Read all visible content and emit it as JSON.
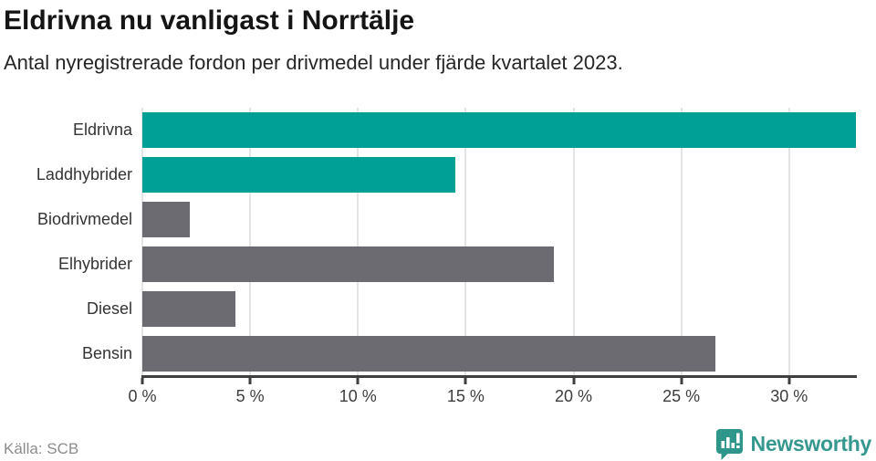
{
  "header": {
    "title": "Eldrivna nu vanligast i Norrtälje",
    "subtitle": "Antal nyregistrerade fordon per drivmedel under fjärde kvartalet 2023."
  },
  "chart_data": {
    "type": "bar",
    "orientation": "horizontal",
    "title": "Eldrivna nu vanligast i Norrtälje",
    "subtitle": "Antal nyregistrerade fordon per drivmedel under fjärde kvartalet 2023.",
    "categories": [
      "Eldrivna",
      "Laddhybrider",
      "Biodrivmedel",
      "Elhybrider",
      "Diesel",
      "Bensin"
    ],
    "values": [
      33.1,
      14.5,
      2.2,
      19.1,
      4.3,
      26.6
    ],
    "unit": "%",
    "series_note": "share of newly registered vehicles by fuel type",
    "bar_colors": [
      "#00a097",
      "#00a097",
      "#6c6b72",
      "#6c6b72",
      "#6c6b72",
      "#6c6b72"
    ],
    "highlight_color": "#00a097",
    "default_color": "#6c6b72",
    "x_tick_labels": [
      "0 %",
      "5 %",
      "10 %",
      "15 %",
      "20 %",
      "25 %",
      "30 %"
    ],
    "x_tick_values": [
      0,
      5,
      10,
      15,
      20,
      25,
      30
    ],
    "xlim": [
      0,
      33.1
    ],
    "xlabel": "",
    "ylabel": "",
    "grid": "vertical",
    "legend": "none"
  },
  "footer": {
    "source": "Källa: SCB",
    "brand": "Newsworthy"
  },
  "colors": {
    "teal": "#00a097",
    "gray": "#6c6b72",
    "logo_teal": "#2f968c",
    "gridline": "#e4e4e4",
    "axis": "#3f3f3f"
  }
}
